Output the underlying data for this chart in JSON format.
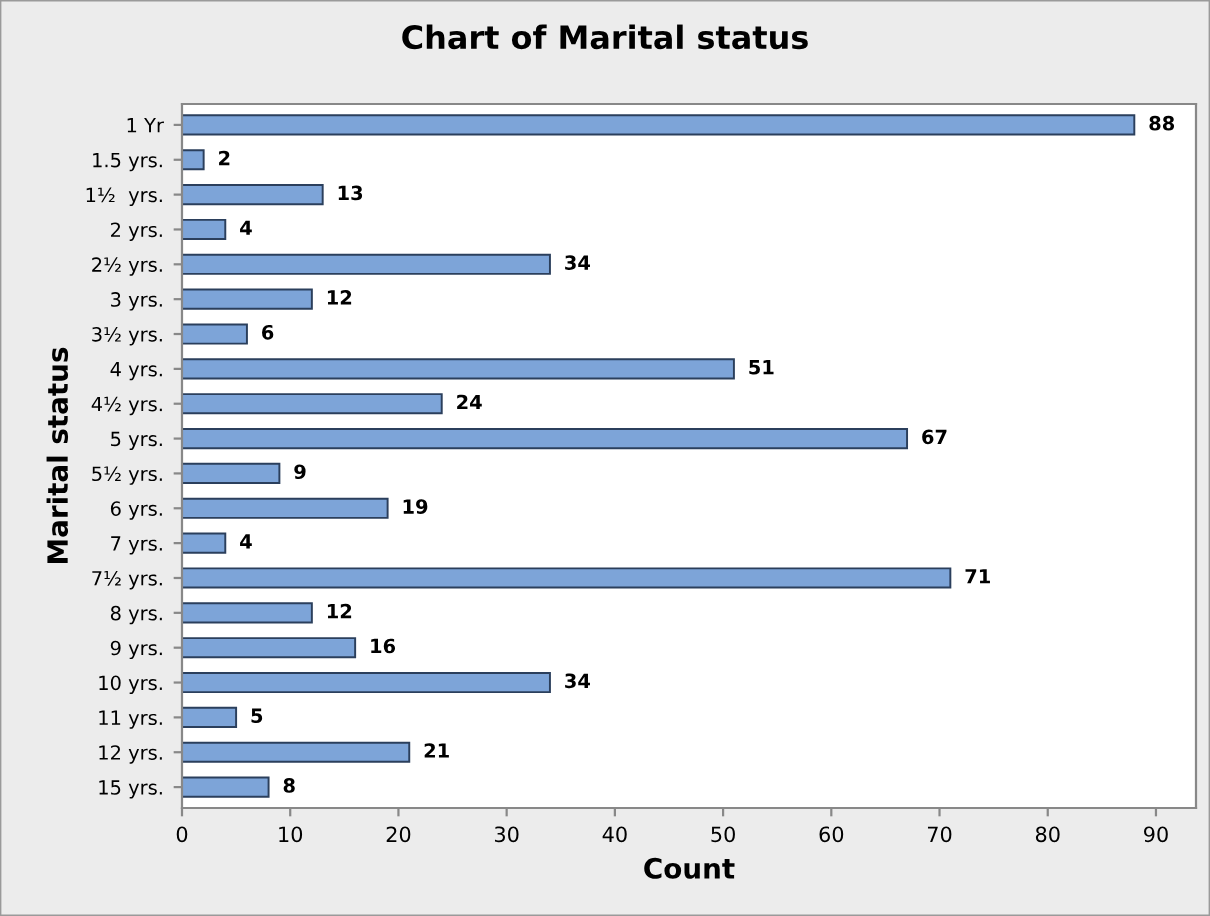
{
  "chart_data": {
    "type": "bar",
    "orientation": "horizontal",
    "title": "Chart of Marital status",
    "xlabel": "Count",
    "ylabel": "Marital status",
    "categories": [
      "1 Yr",
      "1.5 yrs.",
      "1½  yrs.",
      "2 yrs.",
      "2½ yrs.",
      "3 yrs.",
      "3½ yrs.",
      "4 yrs.",
      "4½ yrs.",
      "5 yrs.",
      "5½ yrs.",
      "6 yrs.",
      "7 yrs.",
      "7½ yrs.",
      "8 yrs.",
      "9 yrs.",
      "10 yrs.",
      "11 yrs.",
      "12 yrs.",
      "15 yrs."
    ],
    "values": [
      88,
      2,
      13,
      4,
      34,
      12,
      6,
      51,
      24,
      67,
      9,
      19,
      4,
      71,
      12,
      16,
      34,
      5,
      21,
      8
    ],
    "color": "#7da4d8",
    "xlim": [
      0,
      93.7
    ],
    "xticks": [
      0,
      10,
      20,
      30,
      40,
      50,
      60,
      70,
      80,
      90
    ],
    "data_labels": true,
    "grid": false,
    "legend": false
  }
}
